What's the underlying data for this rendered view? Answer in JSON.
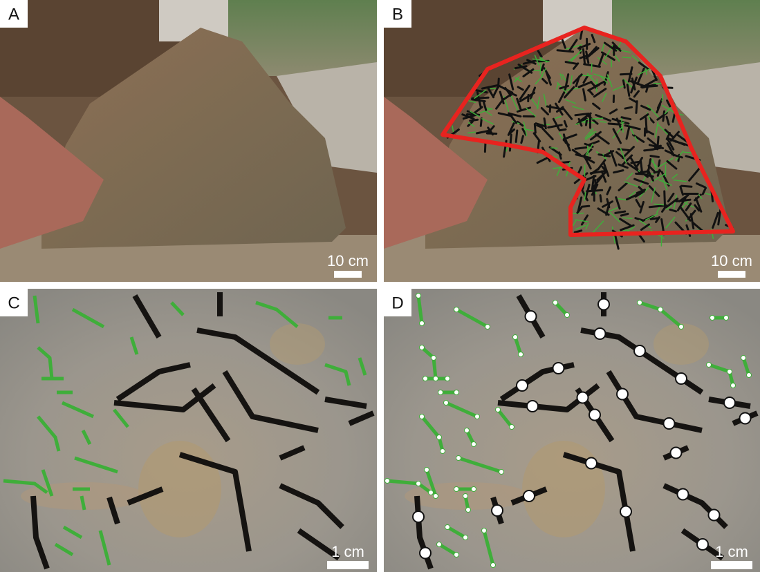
{
  "panels": [
    {
      "label": "A",
      "scale_bar": "10 cm"
    },
    {
      "label": "B",
      "scale_bar": "10 cm"
    },
    {
      "label": "C",
      "scale_bar": "1 cm"
    },
    {
      "label": "D",
      "scale_bar": "1 cm"
    }
  ]
}
